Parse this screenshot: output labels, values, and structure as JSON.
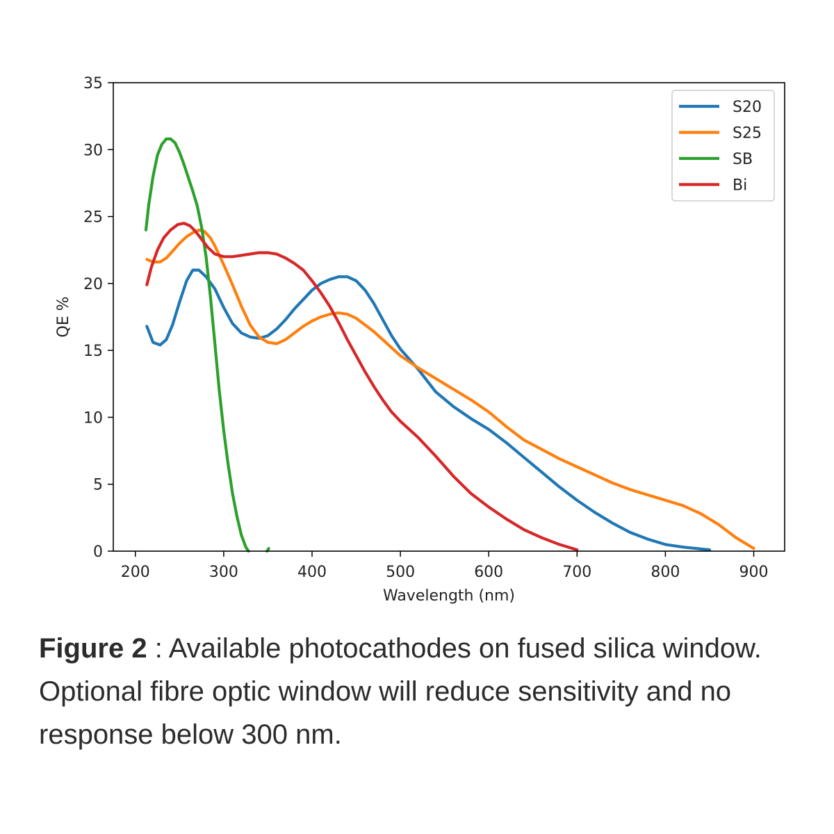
{
  "chart_data": {
    "type": "line",
    "xlabel": "Wavelength (nm)",
    "ylabel": "QE %",
    "xlim": [
      175,
      935
    ],
    "ylim": [
      0,
      35
    ],
    "xticks": [
      200,
      300,
      400,
      500,
      600,
      700,
      800,
      900
    ],
    "yticks": [
      0,
      5,
      10,
      15,
      20,
      25,
      30,
      35
    ],
    "grid": false,
    "legend_position": "upper right",
    "series": [
      {
        "name": "S20",
        "color": "#1f77b4",
        "x": [
          213,
          220,
          228,
          235,
          242,
          250,
          258,
          265,
          272,
          280,
          290,
          300,
          310,
          320,
          330,
          340,
          350,
          360,
          370,
          380,
          390,
          400,
          410,
          420,
          430,
          440,
          450,
          460,
          470,
          480,
          490,
          500,
          520,
          540,
          560,
          580,
          600,
          620,
          640,
          660,
          680,
          700,
          720,
          740,
          760,
          780,
          800,
          820,
          850
        ],
        "values": [
          16.8,
          15.6,
          15.4,
          15.8,
          16.9,
          18.6,
          20.2,
          21.0,
          21.0,
          20.5,
          19.6,
          18.2,
          17.0,
          16.3,
          16.0,
          15.9,
          16.1,
          16.6,
          17.3,
          18.1,
          18.8,
          19.5,
          20.0,
          20.3,
          20.5,
          20.5,
          20.2,
          19.5,
          18.5,
          17.3,
          16.1,
          15.1,
          13.6,
          11.9,
          10.8,
          9.9,
          9.1,
          8.1,
          7.0,
          5.9,
          4.8,
          3.8,
          2.9,
          2.1,
          1.4,
          0.9,
          0.5,
          0.3,
          0.1
        ]
      },
      {
        "name": "S25",
        "color": "#ff7f0e",
        "x": [
          213,
          220,
          228,
          235,
          242,
          250,
          258,
          265,
          272,
          278,
          285,
          290,
          300,
          310,
          320,
          330,
          340,
          350,
          360,
          370,
          380,
          390,
          400,
          410,
          420,
          430,
          440,
          450,
          460,
          470,
          480,
          490,
          500,
          520,
          540,
          560,
          580,
          600,
          620,
          640,
          660,
          680,
          700,
          720,
          740,
          760,
          780,
          800,
          820,
          840,
          860,
          880,
          900
        ],
        "values": [
          21.8,
          21.6,
          21.6,
          21.9,
          22.4,
          23.0,
          23.5,
          23.8,
          24.0,
          23.9,
          23.4,
          22.8,
          21.4,
          19.9,
          18.3,
          16.9,
          16.0,
          15.6,
          15.5,
          15.8,
          16.3,
          16.8,
          17.2,
          17.5,
          17.7,
          17.8,
          17.7,
          17.4,
          16.9,
          16.4,
          15.8,
          15.2,
          14.6,
          13.7,
          12.9,
          12.1,
          11.3,
          10.4,
          9.3,
          8.3,
          7.6,
          6.9,
          6.3,
          5.7,
          5.1,
          4.6,
          4.2,
          3.8,
          3.4,
          2.8,
          2.0,
          1.0,
          0.2
        ]
      },
      {
        "name": "SB",
        "color": "#2ca02c",
        "x": [
          212,
          215,
          220,
          225,
          230,
          235,
          240,
          245,
          250,
          255,
          260,
          265,
          270,
          275,
          280,
          285,
          290,
          295,
          300,
          305,
          310,
          315,
          320,
          325,
          328
        ],
        "values": [
          24.0,
          25.8,
          28.0,
          29.6,
          30.4,
          30.8,
          30.8,
          30.5,
          29.8,
          28.9,
          27.9,
          26.9,
          25.8,
          24.2,
          22.0,
          19.0,
          15.5,
          12.0,
          9.0,
          6.5,
          4.3,
          2.6,
          1.2,
          0.3,
          0.0
        ]
      },
      {
        "name": "Bi",
        "color": "#d62728",
        "x": [
          213,
          218,
          225,
          232,
          240,
          248,
          255,
          262,
          268,
          275,
          282,
          290,
          300,
          310,
          320,
          330,
          340,
          350,
          360,
          370,
          380,
          390,
          400,
          410,
          420,
          430,
          440,
          450,
          460,
          470,
          480,
          490,
          500,
          520,
          540,
          560,
          580,
          600,
          620,
          640,
          660,
          680,
          700
        ],
        "values": [
          19.9,
          21.2,
          22.5,
          23.4,
          24.0,
          24.4,
          24.5,
          24.3,
          23.9,
          23.3,
          22.7,
          22.2,
          22.0,
          22.0,
          22.1,
          22.2,
          22.3,
          22.3,
          22.2,
          21.9,
          21.5,
          21.0,
          20.2,
          19.3,
          18.3,
          17.1,
          15.8,
          14.6,
          13.4,
          12.3,
          11.3,
          10.4,
          9.7,
          8.5,
          7.1,
          5.6,
          4.3,
          3.3,
          2.4,
          1.6,
          1.0,
          0.5,
          0.1
        ]
      },
      {
        "name": "",
        "color": "#2ca02c",
        "x": [
          349,
          351
        ],
        "values": [
          0.0,
          0.2
        ]
      }
    ]
  },
  "caption": {
    "label": "Figure 2",
    "text": " : Available photocathodes on fused silica window. Optional fibre optic window will reduce sensitivity and no response below 300 nm."
  }
}
